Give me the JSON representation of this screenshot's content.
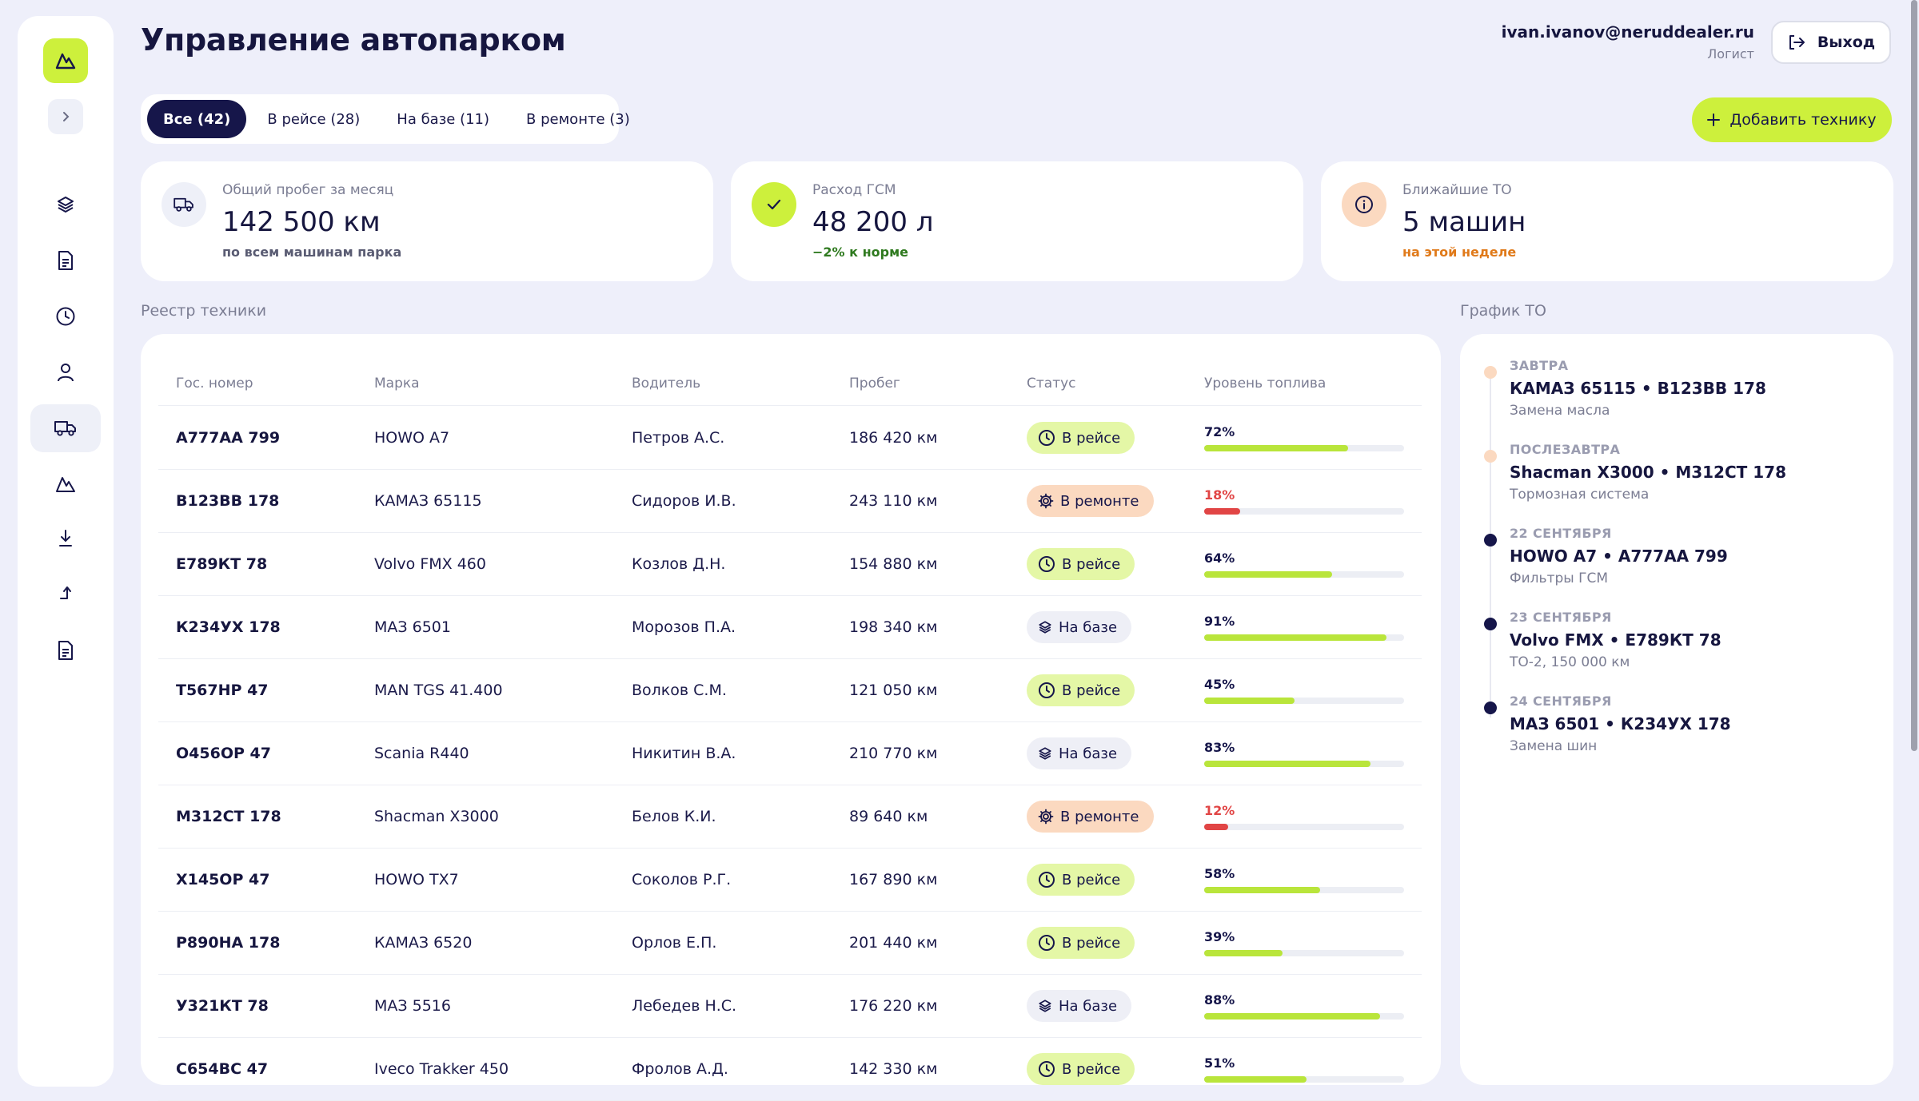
{
  "header": {
    "title": "Управление автопарком",
    "user_email": "ivan.ivanov@neruddealer.ru",
    "user_role": "Логист",
    "logout_label": "Выход"
  },
  "sidebar": {
    "items": [
      {
        "icon": "layers-icon"
      },
      {
        "icon": "document-icon"
      },
      {
        "icon": "clock-icon"
      },
      {
        "icon": "user-icon"
      },
      {
        "icon": "truck-icon",
        "active": true
      },
      {
        "icon": "mountain-icon"
      },
      {
        "icon": "download-icon"
      },
      {
        "icon": "upload-icon"
      },
      {
        "icon": "report-icon"
      }
    ]
  },
  "tabs": [
    {
      "label": "Все (42)",
      "active": true
    },
    {
      "label": "В рейсе (28)"
    },
    {
      "label": "На базе (11)"
    },
    {
      "label": "В ремонте (3)"
    }
  ],
  "add_button_label": "Добавить технику",
  "stats": [
    {
      "label": "Общий пробег за месяц",
      "value": "142 500 км",
      "sub": "по всем машинам парка",
      "icon": "truck-icon",
      "sub_color": "#5a5c73"
    },
    {
      "label": "Расход ГСМ",
      "value": "48 200 л",
      "sub": "−2% к норме",
      "icon": "check-icon",
      "sub_color": "#2f7a1f"
    },
    {
      "label": "Ближайшие ТО",
      "value": "5 машин",
      "sub": "на этой неделе",
      "icon": "info-icon",
      "sub_color": "#e07a1a"
    }
  ],
  "registry": {
    "section_label": "Реестр техники",
    "columns": [
      "Гос. номер",
      "Марка",
      "Водитель",
      "Пробег",
      "Статус",
      "Уровень топлива"
    ],
    "rows": [
      {
        "plate": "А777АА 799",
        "brand": "HOWO A7",
        "driver": "Петров А.С.",
        "mileage": "186 420 км",
        "status": "В рейсе",
        "status_type": "trip",
        "fuel_label": "72%",
        "fuel": 0.72
      },
      {
        "plate": "В123ВВ 178",
        "brand": "КАМАЗ 65115",
        "driver": "Сидоров И.В.",
        "mileage": "243 110 км",
        "status": "В ремонте",
        "status_type": "repair",
        "fuel_label": "18%",
        "fuel": 0.18
      },
      {
        "plate": "Е789КТ 78",
        "brand": "Volvo FMX 460",
        "driver": "Козлов Д.Н.",
        "mileage": "154 880 км",
        "status": "В рейсе",
        "status_type": "trip",
        "fuel_label": "64%",
        "fuel": 0.64
      },
      {
        "plate": "К234УХ 178",
        "brand": "МАЗ 6501",
        "driver": "Морозов П.А.",
        "mileage": "198 340 км",
        "status": "На базе",
        "status_type": "base",
        "fuel_label": "91%",
        "fuel": 0.91
      },
      {
        "plate": "Т567НР 47",
        "brand": "MAN TGS 41.400",
        "driver": "Волков С.М.",
        "mileage": "121 050 км",
        "status": "В рейсе",
        "status_type": "trip",
        "fuel_label": "45%",
        "fuel": 0.45
      },
      {
        "plate": "О456ОР 47",
        "brand": "Scania R440",
        "driver": "Никитин В.А.",
        "mileage": "210 770 км",
        "status": "На базе",
        "status_type": "base",
        "fuel_label": "83%",
        "fuel": 0.83
      },
      {
        "plate": "М312СТ 178",
        "brand": "Shacman X3000",
        "driver": "Белов К.И.",
        "mileage": "89 640 км",
        "status": "В ремонте",
        "status_type": "repair",
        "fuel_label": "12%",
        "fuel": 0.12
      },
      {
        "plate": "Х145ОР 47",
        "brand": "HOWO TX7",
        "driver": "Соколов Р.Г.",
        "mileage": "167 890 км",
        "status": "В рейсе",
        "status_type": "trip",
        "fuel_label": "58%",
        "fuel": 0.58
      },
      {
        "plate": "Р890НА 178",
        "brand": "КАМАЗ 6520",
        "driver": "Орлов Е.П.",
        "mileage": "201 440 км",
        "status": "В рейсе",
        "status_type": "trip",
        "fuel_label": "39%",
        "fuel": 0.39
      },
      {
        "plate": "У321КТ 78",
        "brand": "МАЗ 5516",
        "driver": "Лебедев Н.С.",
        "mileage": "176 220 км",
        "status": "На базе",
        "status_type": "base",
        "fuel_label": "88%",
        "fuel": 0.88
      },
      {
        "plate": "С654ВС 47",
        "brand": "Iveco Trakker 450",
        "driver": "Фролов А.Д.",
        "mileage": "142 330 км",
        "status": "В рейсе",
        "status_type": "trip",
        "fuel_label": "51%",
        "fuel": 0.51
      }
    ]
  },
  "schedule": {
    "section_label": "График ТО",
    "events": [
      {
        "date": "ЗАВТРА",
        "title": "КАМАЗ 65115 • В123ВВ 178",
        "desc": "Замена масла",
        "dot_color": "#fbd9c0"
      },
      {
        "date": "ПОСЛЕЗАВТРА",
        "title": "Shacman X3000 • М312СТ 178",
        "desc": "Тормозная система",
        "dot_color": "#fbd9c0"
      },
      {
        "date": "22 СЕНТЯБРЯ",
        "title": "HOWO A7 • А777АА 799",
        "desc": "Фильтры ГСМ",
        "dot_color": "#16164a"
      },
      {
        "date": "23 СЕНТЯБРЯ",
        "title": "Volvo FMX • Е789КТ 78",
        "desc": "ТО-2, 150 000 км",
        "dot_color": "#16164a"
      },
      {
        "date": "24 СЕНТЯБРЯ",
        "title": "МАЗ 6501 • К234УХ 178",
        "desc": "Замена шин",
        "dot_color": "#16164a"
      }
    ]
  }
}
